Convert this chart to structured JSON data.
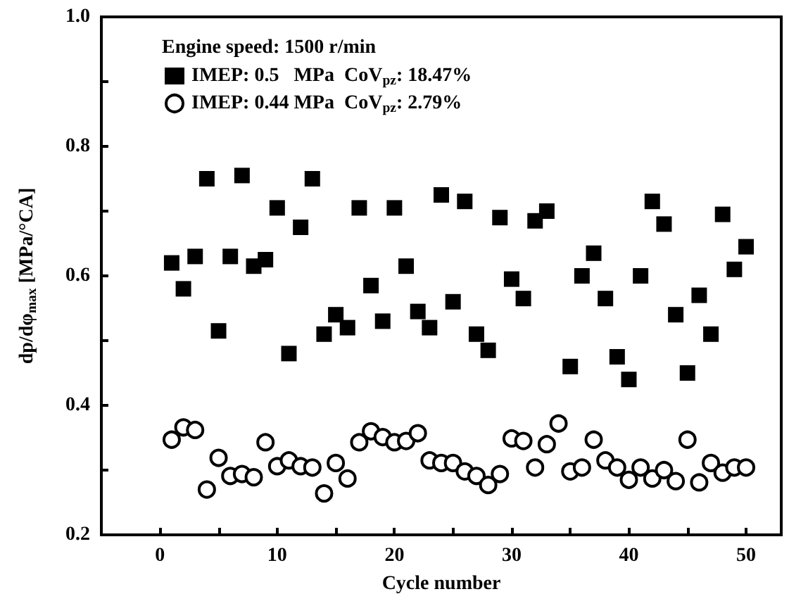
{
  "chart_data": {
    "type": "scatter",
    "xlabel": "Cycle number",
    "ylabel": "dp/dφ$_{max}$ [MPa/°CA]",
    "legend_title": "Engine speed: 1500 r/min",
    "legend": "top left",
    "grid": false,
    "xlim": [
      -5,
      53
    ],
    "xticks": [
      0,
      {
        "value": 5,
        "label": null
      },
      10,
      {
        "value": 15,
        "label": null
      },
      20,
      {
        "value": 25,
        "label": null
      },
      30,
      {
        "value": 35,
        "label": null
      },
      40,
      {
        "value": 45,
        "label": null
      },
      50
    ],
    "ylim": [
      0.2,
      1.0
    ],
    "yticks": [
      {
        "value": 0.2,
        "label": "0.2"
      },
      {
        "value": 0.3,
        "label": null
      },
      {
        "value": 0.4,
        "label": "0.4"
      },
      {
        "value": 0.5,
        "label": null
      },
      {
        "value": 0.6,
        "label": "0.6"
      },
      {
        "value": 0.7,
        "label": null
      },
      {
        "value": 0.8,
        "label": "0.8"
      },
      {
        "value": 0.9,
        "label": null
      },
      {
        "value": 1.0,
        "label": "1.0"
      }
    ],
    "series": [
      {
        "name": "IMEP: 0.5   MPa  CoV$_{pz}$: 18.47%",
        "color": "#000000",
        "marker": "square",
        "x": [
          1,
          2,
          3,
          4,
          5,
          6,
          7,
          8,
          9,
          10,
          11,
          12,
          13,
          14,
          15,
          16,
          17,
          18,
          19,
          20,
          21,
          22,
          23,
          24,
          25,
          26,
          27,
          28,
          29,
          30,
          31,
          32,
          33,
          35,
          36,
          37,
          38,
          39,
          40,
          41,
          42,
          43,
          44,
          45,
          46,
          47,
          48,
          49,
          50
        ],
        "values": [
          0.62,
          0.58,
          0.63,
          0.75,
          0.515,
          0.63,
          0.755,
          0.615,
          0.625,
          0.705,
          0.48,
          0.675,
          0.75,
          0.51,
          0.54,
          0.52,
          0.705,
          0.585,
          0.53,
          0.705,
          0.615,
          0.545,
          0.52,
          0.725,
          0.56,
          0.715,
          0.51,
          0.485,
          0.69,
          0.595,
          0.565,
          0.685,
          0.7,
          0.46,
          0.6,
          0.635,
          0.565,
          0.475,
          0.44,
          0.6,
          0.715,
          0.68,
          0.54,
          0.45,
          0.57,
          0.51,
          0.695,
          0.61,
          0.645
        ]
      },
      {
        "name": "IMEP: 0.44 MPa  CoV$_{pz}$: 2.79%",
        "color": "#000000",
        "marker": "circle",
        "x": [
          1,
          2,
          3,
          4,
          5,
          6,
          7,
          8,
          9,
          10,
          11,
          12,
          13,
          14,
          15,
          16,
          17,
          18,
          19,
          20,
          21,
          22,
          23,
          24,
          25,
          26,
          27,
          28,
          29,
          30,
          31,
          32,
          33,
          34,
          35,
          36,
          37,
          38,
          39,
          40,
          41,
          42,
          43,
          44,
          45,
          46,
          47,
          48,
          49,
          50
        ],
        "values": [
          0.347,
          0.366,
          0.362,
          0.27,
          0.319,
          0.291,
          0.294,
          0.289,
          0.343,
          0.306,
          0.315,
          0.306,
          0.304,
          0.264,
          0.311,
          0.287,
          0.343,
          0.36,
          0.351,
          0.343,
          0.345,
          0.357,
          0.315,
          0.311,
          0.311,
          0.298,
          0.291,
          0.277,
          0.294,
          0.349,
          0.345,
          0.304,
          0.34,
          0.372,
          0.298,
          0.304,
          0.347,
          0.315,
          0.304,
          0.285,
          0.304,
          0.287,
          0.3,
          0.283,
          0.347,
          0.281,
          0.311,
          0.296,
          0.304,
          0.304
        ]
      }
    ]
  }
}
